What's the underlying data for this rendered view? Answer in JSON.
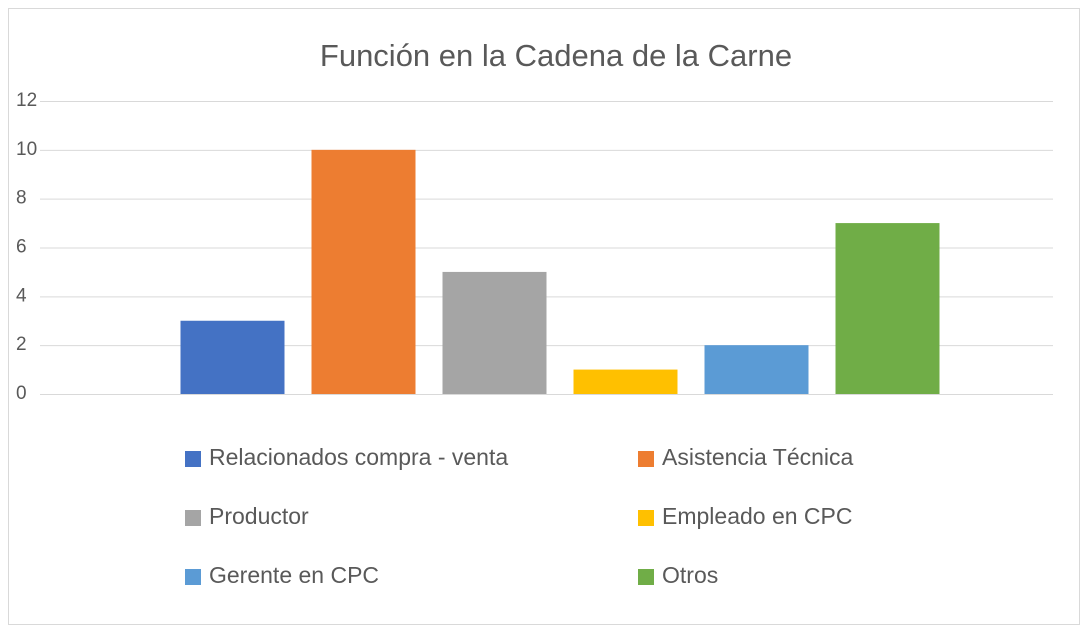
{
  "chart_data": {
    "type": "bar",
    "title": "Función en la Cadena de la Carne",
    "categories": [
      null
    ],
    "series": [
      {
        "name": "Relacionados compra - venta",
        "color": "#4472c4",
        "values": [
          3
        ]
      },
      {
        "name": "Asistencia Técnica",
        "color": "#ed7d31",
        "values": [
          10
        ]
      },
      {
        "name": "Productor",
        "color": "#a5a5a5",
        "values": [
          5
        ]
      },
      {
        "name": "Empleado en CPC",
        "color": "#ffc000",
        "values": [
          1
        ]
      },
      {
        "name": "Gerente en CPC",
        "color": "#5b9bd5",
        "values": [
          2
        ]
      },
      {
        "name": "Otros",
        "color": "#70ad47",
        "values": [
          7
        ]
      }
    ],
    "ylim": [
      0,
      12
    ],
    "yticks": [
      0,
      2,
      4,
      6,
      8,
      10,
      12
    ],
    "grid": true,
    "legend": "bottom"
  }
}
